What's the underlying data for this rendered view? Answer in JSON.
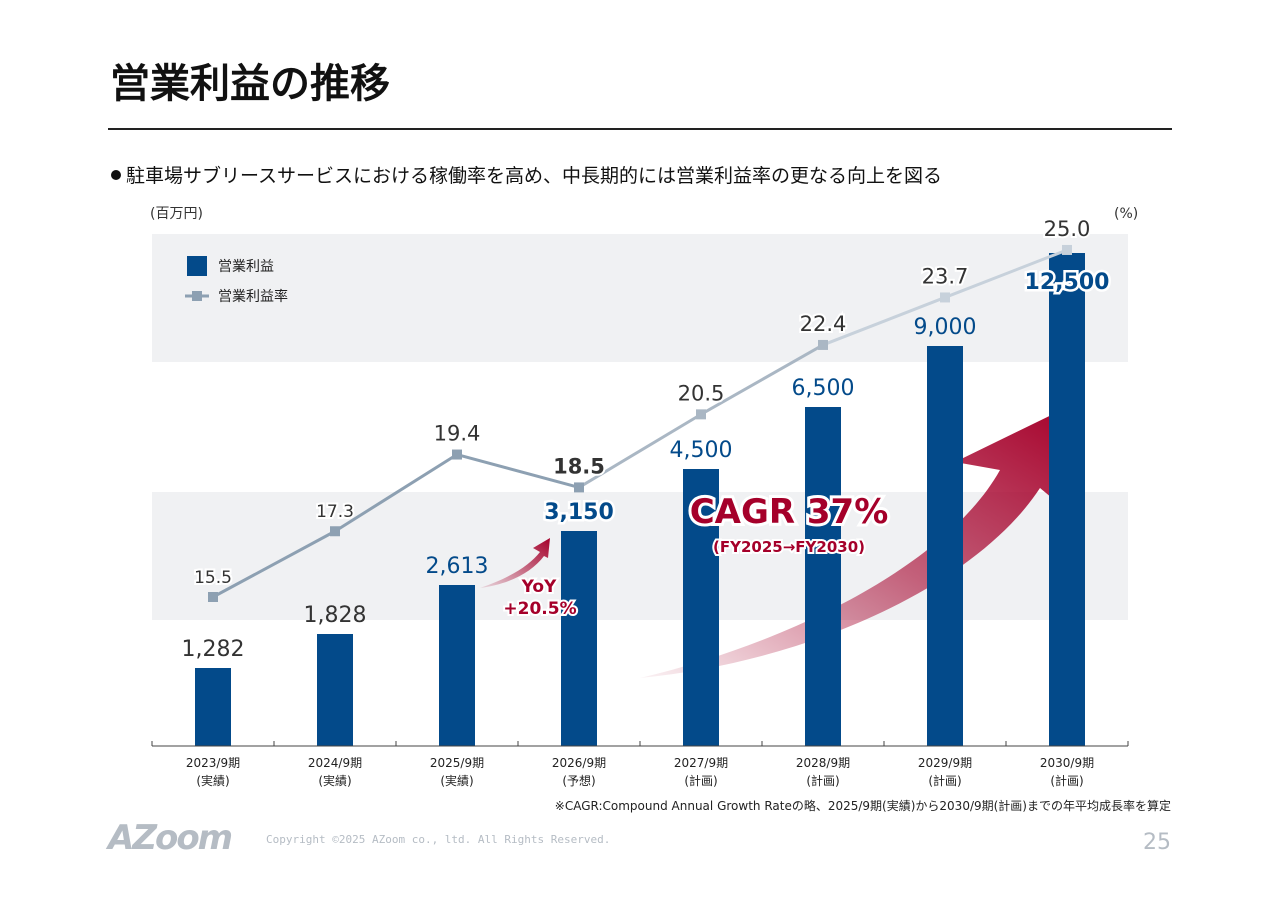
{
  "header": {
    "title": "営業利益の推移"
  },
  "bullet": "駐車場サブリースサービスにおける稼働率を高め、中長期的には営業利益率の更なる向上を図る",
  "colors": {
    "bar": "#034a8a",
    "line_dark": "#8da0b2",
    "line_light": "#c7d1db",
    "accent": "#a5002a",
    "band": "#f0f1f3"
  },
  "chart_data": {
    "type": "bar+line",
    "left_unit": "(百万円)",
    "right_unit": "(%)",
    "categories": [
      "2023/9期",
      "2024/9期",
      "2025/9期",
      "2026/9期",
      "2027/9期",
      "2028/9期",
      "2029/9期",
      "2030/9期"
    ],
    "category_sub": [
      "(実績)",
      "(実績)",
      "(実績)",
      "(予想)",
      "(計画)",
      "(計画)",
      "(計画)",
      "(計画)"
    ],
    "series": [
      {
        "name": "営業利益",
        "type": "bar",
        "values": [
          1282,
          1828,
          2613,
          3150,
          4500,
          6500,
          9000,
          12500
        ],
        "labels": [
          "1,282",
          "1,828",
          "2,613",
          "3,150",
          "4,500",
          "6,500",
          "9,000",
          "12,500"
        ]
      },
      {
        "name": "営業利益率",
        "type": "line",
        "values": [
          15.5,
          17.3,
          19.4,
          18.5,
          20.5,
          22.4,
          23.7,
          25.0
        ],
        "labels": [
          "15.5",
          "17.3",
          "19.4",
          "18.5",
          "20.5",
          "22.4",
          "23.7",
          "25.0"
        ]
      }
    ],
    "legend": [
      "営業利益",
      "営業利益率"
    ],
    "legend_position": "top-left",
    "annotations": {
      "yoy_label": "YoY",
      "yoy_value": "+20.5%",
      "cagr": "CAGR 37%",
      "cagr_period": "(FY2025→FY2030)"
    },
    "footnote": "※CAGR:Compound Annual Growth Rateの略、2025/9期(実績)から2030/9期(計画)までの年平均成長率を算定"
  },
  "footer": {
    "logo": "AZoom",
    "copyright": "Copyright ©2025 AZoom co., ltd. All Rights Reserved.",
    "page": "25"
  }
}
